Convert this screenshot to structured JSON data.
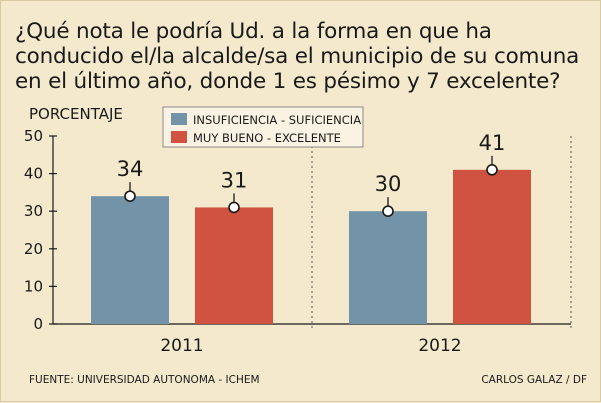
{
  "title": "¿Qué nota le podría Ud. a la forma en que ha\nconducido el/la alcalde/sa el municipio de su comuna\nen el último año, donde 1 es pésimo y 7 excelente?",
  "source": "FUENTE: UNIVERSIDAD AUTONOMA - ICHEM",
  "credit": "CARLOS GALAZ / DF",
  "colors": {
    "background": "#f4e9cc",
    "series1": "#7394a8",
    "series2": "#cf5340",
    "text": "#1a1a1a"
  },
  "chart_data": {
    "type": "bar",
    "title": "¿Qué nota le podría Ud. a la forma en que ha conducido el/la alcalde/sa el municipio de su comuna en el último año, donde 1 es pésimo y 7 excelente?",
    "xlabel": "",
    "ylabel": "PORCENTAJE",
    "categories": [
      "2011",
      "2012"
    ],
    "series": [
      {
        "name": "INSUFICIENCIA - SUFICIENCIA",
        "values": [
          34,
          30
        ]
      },
      {
        "name": "MUY BUENO - EXCELENTE",
        "values": [
          31,
          41
        ]
      }
    ],
    "data_labels": [
      [
        "34",
        "30"
      ],
      [
        "31",
        "41"
      ]
    ],
    "ylim": [
      0,
      50
    ],
    "yticks": [
      "0",
      "10",
      "20",
      "30",
      "40",
      "50"
    ],
    "legend": "top-center",
    "grid": false
  }
}
